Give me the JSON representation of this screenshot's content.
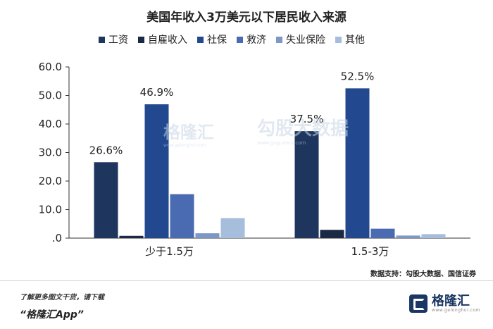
{
  "chart_data": {
    "type": "bar",
    "title": "美国年收入3万美元以下居民收入来源",
    "categories": [
      "少于1.5万",
      "1.5-3万"
    ],
    "series": [
      {
        "name": "工资",
        "color": "#1e365e",
        "values": [
          26.6,
          37.5
        ]
      },
      {
        "name": "自雇收入",
        "color": "#1b2a44",
        "values": [
          0.8,
          2.9
        ]
      },
      {
        "name": "社保",
        "color": "#22498f",
        "values": [
          46.9,
          52.5
        ]
      },
      {
        "name": "救济",
        "color": "#4a6bb1",
        "values": [
          15.4,
          3.3
        ]
      },
      {
        "name": "失业保险",
        "color": "#7d97c6",
        "values": [
          1.7,
          0.9
        ]
      },
      {
        "name": "其他",
        "color": "#a6bddb",
        "values": [
          7.0,
          1.4
        ]
      }
    ],
    "data_labels": [
      {
        "series": 0,
        "category": 0,
        "text": "26.6%"
      },
      {
        "series": 2,
        "category": 0,
        "text": "46.9%"
      },
      {
        "series": 0,
        "category": 1,
        "text": "37.5%"
      },
      {
        "series": 2,
        "category": 1,
        "text": "52.5%"
      }
    ],
    "ylim": [
      0,
      60
    ],
    "yticks": [
      "60.0",
      "50.0",
      "40.0",
      "30.0",
      "20.0",
      "10.0",
      ".0"
    ],
    "ytick_values": [
      60,
      50,
      40,
      30,
      20,
      10,
      0
    ],
    "legend_position": "top",
    "grid": false
  },
  "source_note": "数据支持：勾股大数据、国信证券",
  "footer": {
    "promo_line": "了解更多图文干货，请下载",
    "app_name": "“格隆汇App”",
    "brand_name": "格隆汇",
    "brand_url": "www.gelonghui.com"
  },
  "watermark": {
    "left_text": "格隆汇",
    "left_url": "www.gelonghui.com",
    "right_text": "勾股大数据",
    "right_url": "www.gogudata.com"
  }
}
